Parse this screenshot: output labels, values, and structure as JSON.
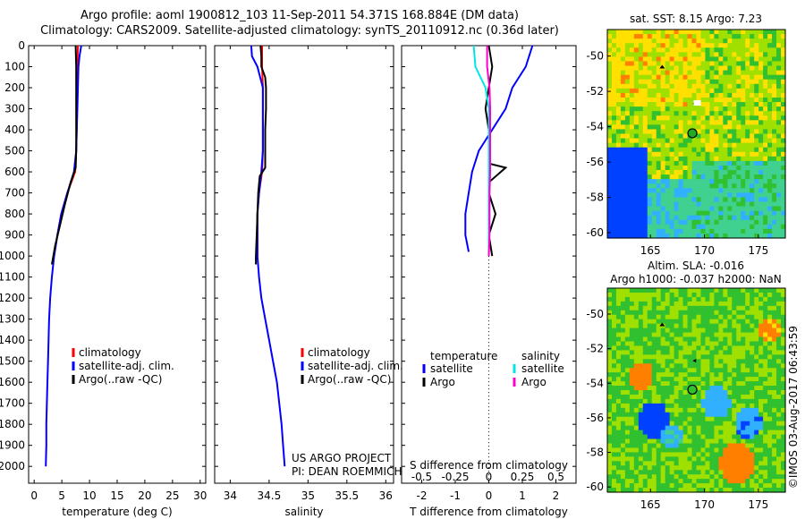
{
  "header": {
    "title_line1": "Argo profile: aoml 1900812_103 11-Sep-2011 54.371S 168.884E (DM data)",
    "title_line2": "Climatology: CARS2009. Satellite-adjusted climatology: synTS_20110912.nc (0.36d later)"
  },
  "colors": {
    "climatology": "#ff0000",
    "satellite": "#0000ff",
    "argo": "#000000",
    "sal_satellite": "#00e6e6",
    "sal_argo": "#ff00cc"
  },
  "chart_data": [
    {
      "type": "line",
      "id": "temperature",
      "xlabel": "temperature (deg C)",
      "ylabel": "",
      "xlim": [
        -1,
        31
      ],
      "ylim": [
        2080,
        0
      ],
      "xticks": [
        0,
        5,
        10,
        15,
        20,
        25,
        30
      ],
      "yticks": [
        0,
        100,
        200,
        300,
        400,
        500,
        600,
        700,
        800,
        900,
        1000,
        1100,
        1200,
        1300,
        1400,
        1500,
        1600,
        1700,
        1800,
        1900,
        2000
      ],
      "legend": [
        "climatology",
        "satellite-adj. clim.",
        "Argo(..raw -QC)"
      ],
      "series": [
        {
          "name": "climatology",
          "color": "#ff0000",
          "points": [
            [
              7.9,
              0
            ],
            [
              7.8,
              100
            ],
            [
              7.8,
              200
            ],
            [
              7.7,
              300
            ],
            [
              7.7,
              400
            ],
            [
              7.6,
              500
            ],
            [
              7.4,
              600
            ],
            [
              6.0,
              700
            ],
            [
              4.9,
              800
            ],
            [
              4.2,
              900
            ],
            [
              3.6,
              1000
            ]
          ]
        },
        {
          "name": "satellite-adj. clim.",
          "color": "#0000ff",
          "points": [
            [
              8.5,
              0
            ],
            [
              8.2,
              50
            ],
            [
              8.0,
              100
            ],
            [
              7.9,
              200
            ],
            [
              7.8,
              300
            ],
            [
              7.7,
              400
            ],
            [
              7.6,
              500
            ],
            [
              7.2,
              600
            ],
            [
              6.0,
              700
            ],
            [
              4.9,
              800
            ],
            [
              4.2,
              900
            ],
            [
              3.6,
              1000
            ],
            [
              3.2,
              1100
            ],
            [
              2.9,
              1200
            ],
            [
              2.7,
              1300
            ],
            [
              2.6,
              1400
            ],
            [
              2.5,
              1500
            ],
            [
              2.4,
              1600
            ],
            [
              2.3,
              1700
            ],
            [
              2.2,
              1800
            ],
            [
              2.2,
              1900
            ],
            [
              2.1,
              2000
            ]
          ]
        },
        {
          "name": "Argo(..raw -QC)",
          "color": "#000000",
          "points": [
            [
              7.5,
              0
            ],
            [
              7.6,
              100
            ],
            [
              7.6,
              200
            ],
            [
              7.6,
              300
            ],
            [
              7.6,
              400
            ],
            [
              7.6,
              500
            ],
            [
              7.5,
              580
            ],
            [
              6.6,
              650
            ],
            [
              5.6,
              750
            ],
            [
              4.7,
              850
            ],
            [
              3.8,
              950
            ],
            [
              3.2,
              1040
            ]
          ]
        }
      ]
    },
    {
      "type": "line",
      "id": "salinity",
      "xlabel": "salinity",
      "ylabel": "",
      "xlim": [
        33.8,
        36.1
      ],
      "ylim": [
        2080,
        0
      ],
      "xticks": [
        34,
        34.5,
        35,
        35.5,
        36
      ],
      "legend": [
        "climatology",
        "satellite-adj. clim.",
        "Argo(..raw -QC)"
      ],
      "annotation": [
        "US ARGO PROJECT",
        "PI: DEAN ROEMMICH"
      ],
      "series": [
        {
          "name": "climatology",
          "color": "#ff0000",
          "points": [
            [
              34.41,
              0
            ],
            [
              34.41,
              100
            ],
            [
              34.42,
              200
            ],
            [
              34.42,
              300
            ],
            [
              34.42,
              400
            ],
            [
              34.42,
              500
            ],
            [
              34.41,
              600
            ],
            [
              34.37,
              700
            ],
            [
              34.35,
              800
            ],
            [
              34.35,
              900
            ],
            [
              34.35,
              1000
            ]
          ]
        },
        {
          "name": "satellite-adj. clim.",
          "color": "#0000ff",
          "points": [
            [
              34.27,
              0
            ],
            [
              34.28,
              50
            ],
            [
              34.35,
              100
            ],
            [
              34.42,
              200
            ],
            [
              34.42,
              300
            ],
            [
              34.42,
              400
            ],
            [
              34.42,
              500
            ],
            [
              34.4,
              600
            ],
            [
              34.37,
              700
            ],
            [
              34.35,
              800
            ],
            [
              34.35,
              900
            ],
            [
              34.35,
              1000
            ],
            [
              34.37,
              1100
            ],
            [
              34.4,
              1200
            ],
            [
              34.45,
              1300
            ],
            [
              34.5,
              1400
            ],
            [
              34.55,
              1500
            ],
            [
              34.6,
              1600
            ],
            [
              34.63,
              1700
            ],
            [
              34.66,
              1800
            ],
            [
              34.68,
              1900
            ],
            [
              34.7,
              2000
            ]
          ]
        },
        {
          "name": "Argo(..raw -QC)",
          "color": "#000000",
          "points": [
            [
              34.39,
              0
            ],
            [
              34.4,
              50
            ],
            [
              34.4,
              100
            ],
            [
              34.45,
              150
            ],
            [
              34.46,
              200
            ],
            [
              34.46,
              300
            ],
            [
              34.45,
              400
            ],
            [
              34.45,
              500
            ],
            [
              34.45,
              580
            ],
            [
              34.38,
              620
            ],
            [
              34.36,
              700
            ],
            [
              34.35,
              800
            ],
            [
              34.34,
              900
            ],
            [
              34.33,
              1000
            ],
            [
              34.33,
              1040
            ]
          ]
        }
      ]
    },
    {
      "type": "line",
      "id": "difference",
      "xlabel": "T difference from climatology",
      "xlabel2": "S difference from climatology",
      "xlim": [
        -2.6,
        2.6
      ],
      "ylim": [
        2080,
        0
      ],
      "xticks": [
        -2,
        -1,
        0,
        1,
        2
      ],
      "xticks_top": [
        -0.5,
        -0.25,
        0,
        0.25,
        0.5
      ],
      "legend": {
        "temperature": [
          "satellite",
          "Argo"
        ],
        "salinity": [
          "satellite",
          "Argo"
        ]
      },
      "series": [
        {
          "name": "temperature satellite",
          "color": "#0000ff",
          "points": [
            [
              1.3,
              0
            ],
            [
              1.1,
              100
            ],
            [
              0.7,
              200
            ],
            [
              0.5,
              300
            ],
            [
              0.1,
              400
            ],
            [
              -0.3,
              500
            ],
            [
              -0.5,
              600
            ],
            [
              -0.6,
              700
            ],
            [
              -0.7,
              800
            ],
            [
              -0.7,
              900
            ],
            [
              -0.6,
              980
            ]
          ]
        },
        {
          "name": "temperature Argo",
          "color": "#000000",
          "points": [
            [
              0.0,
              0
            ],
            [
              0.1,
              100
            ],
            [
              0.0,
              200
            ],
            [
              -0.1,
              300
            ],
            [
              0.0,
              400
            ],
            [
              0.0,
              500
            ],
            [
              0.0,
              560
            ],
            [
              0.5,
              580
            ],
            [
              0.0,
              650
            ],
            [
              0.0,
              700
            ],
            [
              0.2,
              800
            ],
            [
              0.0,
              900
            ],
            [
              0.1,
              1000
            ]
          ]
        },
        {
          "name": "salinity satellite",
          "color": "#00e6e6",
          "points": [
            [
              -0.45,
              0
            ],
            [
              -0.4,
              100
            ],
            [
              -0.1,
              200
            ],
            [
              0.0,
              300
            ],
            [
              0.0,
              400
            ],
            [
              0.0,
              500
            ],
            [
              0.0,
              600
            ],
            [
              0.0,
              700
            ],
            [
              0.0,
              800
            ],
            [
              0.0,
              900
            ],
            [
              0.0,
              1000
            ]
          ]
        },
        {
          "name": "salinity Argo",
          "color": "#ff00cc",
          "points": [
            [
              -0.05,
              0
            ],
            [
              -0.05,
              100
            ],
            [
              0.02,
              200
            ],
            [
              0.04,
              300
            ],
            [
              0.04,
              400
            ],
            [
              0.04,
              500
            ],
            [
              0.04,
              600
            ],
            [
              0.02,
              700
            ],
            [
              0.02,
              800
            ],
            [
              0.02,
              900
            ],
            [
              0.0,
              1000
            ]
          ]
        }
      ]
    },
    {
      "type": "heatmap",
      "id": "sst_map",
      "title": "sat. SST: 8.15  Argo: 7.23",
      "xlim": [
        161,
        177.5
      ],
      "ylim": [
        -60.3,
        -48.5
      ],
      "xticks": [
        165,
        170,
        175
      ],
      "yticks": [
        -50,
        -52,
        -54,
        -56,
        -58,
        -60
      ],
      "float_position": [
        168.884,
        -54.371
      ]
    },
    {
      "type": "heatmap",
      "id": "sla_map",
      "title": "Altim. SLA: -0.016",
      "subtitle": "Argo h1000: -0.037  h2000: NaN",
      "xlim": [
        161,
        177.5
      ],
      "ylim": [
        -60.3,
        -48.5
      ],
      "xticks": [
        165,
        170,
        175
      ],
      "yticks": [
        -50,
        -52,
        -54,
        -56,
        -58,
        -60
      ],
      "float_position": [
        168.884,
        -54.371
      ]
    }
  ],
  "footer": {
    "credit": "©IMOS 03-Aug-2017 06:43:59"
  }
}
